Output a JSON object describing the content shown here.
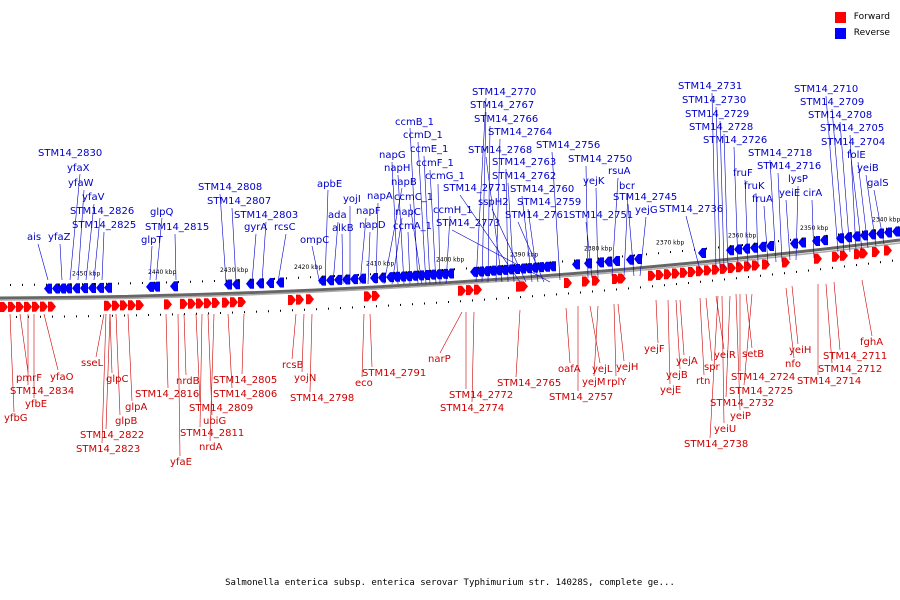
{
  "caption": "Salmonella enterica subsp. enterica serovar Typhimurium str. 14028S, complete ge...",
  "legend": [
    {
      "label": "Forward",
      "color": "#ff0000"
    },
    {
      "label": "Reverse",
      "color": "#0000ff"
    }
  ],
  "scale_ticks": [
    "2450 kbp",
    "2440 kbp",
    "2430 kbp",
    "2420 kbp",
    "2410 kbp",
    "2400 kbp",
    "2390 kbp",
    "2380 kbp",
    "2370 kbp",
    "2360 kbp",
    "2350 kbp",
    "2340 kbp"
  ],
  "reverse_labels": [
    "ais",
    "yfaZ",
    "STM14_2830",
    "yfaX",
    "yfaW",
    "yfaV",
    "STM14_2826",
    "STM14_2825",
    "glpQ",
    "glpT",
    "STM14_2815",
    "STM14_2808",
    "STM14_2807",
    "gyrA",
    "STM14_2803",
    "rcsC",
    "ompC",
    "apbE",
    "ada",
    "alkB",
    "yojI",
    "napF",
    "napD",
    "napA",
    "napB",
    "napC",
    "napG",
    "napH",
    "ccmA_1",
    "ccmB_1",
    "ccmC_1",
    "ccmD_1",
    "ccmE_1",
    "ccmF_1",
    "ccmG_1",
    "ccmH_1",
    "STM14_2770",
    "STM14_2767",
    "STM14_2766",
    "STM14_2764",
    "STM14_2768",
    "STM14_2763",
    "STM14_2762",
    "STM14_2771",
    "sspH2",
    "STM14_2760",
    "STM14_2759",
    "STM14_2761",
    "STM14_2773",
    "STM14_2756",
    "STM14_2750",
    "yejK",
    "rsuA",
    "bcr",
    "STM14_2745",
    "yejG",
    "STM14_2751",
    "STM14_2736",
    "STM14_2731",
    "STM14_2730",
    "STM14_2729",
    "STM14_2728",
    "STM14_2726",
    "fruF",
    "fruK",
    "fruA",
    "STM14_2718",
    "STM14_2716",
    "lysP",
    "yeiE",
    "cirA",
    "STM14_2710",
    "STM14_2709",
    "STM14_2708",
    "STM14_2705",
    "STM14_2704",
    "folE",
    "yeiB",
    "galS"
  ],
  "forward_labels": [
    "pmrF",
    "STM14_2834",
    "yfbE",
    "yfbG",
    "yfaO",
    "sseL",
    "glpC",
    "glpB",
    "STM14_2822",
    "STM14_2823",
    "glpA",
    "STM14_2816",
    "nrdB",
    "yfaE",
    "STM14_2809",
    "ubiG",
    "STM14_2811",
    "nrdA",
    "STM14_2805",
    "STM14_2806",
    "rcsB",
    "yojN",
    "STM14_2798",
    "eco",
    "STM14_2791",
    "narP",
    "STM14_2772",
    "STM14_2774",
    "STM14_2765",
    "oafA",
    "yejL",
    "yejM",
    "STM14_2757",
    "yejH",
    "rplY",
    "yejF",
    "yejA",
    "yejB",
    "yejE",
    "spr",
    "rtn",
    "yeiR",
    "yeiU",
    "STM14_2738",
    "STM14_2732",
    "yeiP",
    "setB",
    "STM14_2724",
    "STM14_2725",
    "yeiH",
    "nfo",
    "STM14_2711",
    "STM14_2712",
    "STM14_2714",
    "fghA"
  ],
  "colors": {
    "forward": "#ff0000",
    "reverse": "#0000ff",
    "backbone": "#888888",
    "leader_forward": "#cc0000",
    "leader_reverse": "#0000cc"
  }
}
